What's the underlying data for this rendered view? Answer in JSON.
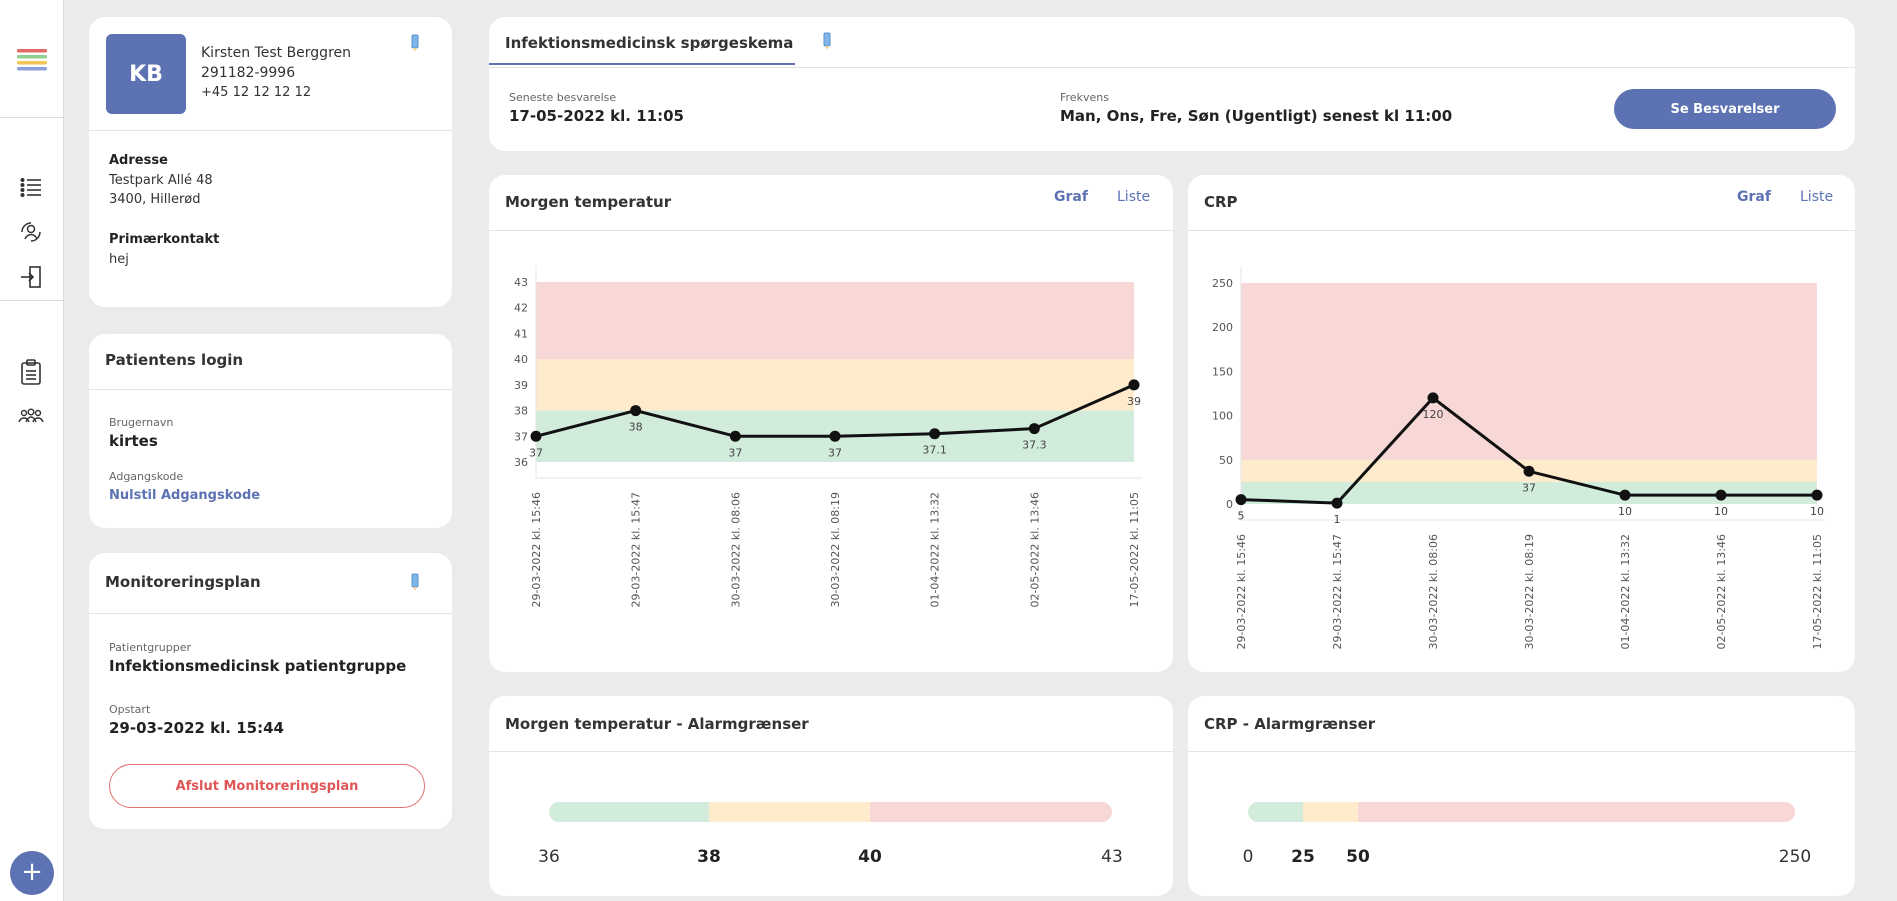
{
  "colors": {
    "accent": "#5c72b3",
    "green": "#d2ecdc",
    "yellow": "#fdebcb",
    "red": "#f8d7d7",
    "danger": "#e05555"
  },
  "nav": {
    "items": [
      "logo",
      "list-icon",
      "patient-cycle-icon",
      "exit-door-icon",
      "clipboard-icon",
      "group-icon"
    ],
    "fab_label": "+"
  },
  "patient": {
    "initials": "KB",
    "name": "Kirsten Test Berggren",
    "cpr": "291182-9996",
    "phone": "+45 12 12 12 12",
    "address_label": "Adresse",
    "address_line1": "Testpark Allé 48",
    "address_line2": "3400, Hillerød",
    "contact_label": "Primærkontakt",
    "contact_value": "hej"
  },
  "login": {
    "title": "Patientens login",
    "username_label": "Brugernavn",
    "username": "kirtes",
    "password_label": "Adgangskode",
    "reset_link": "Nulstil Adgangskode"
  },
  "plan": {
    "title": "Monitoreringsplan",
    "groups_label": "Patientgrupper",
    "groups_value": "Infektionsmedicinsk patientgruppe",
    "start_label": "Opstart",
    "start_value": "29-03-2022 kl. 15:44",
    "end_button": "Afslut Monitoreringsplan"
  },
  "questionnaire": {
    "tab": "Infektionsmedicinsk spørgeskema",
    "latest_label": "Seneste besvarelse",
    "latest_value": "17-05-2022 kl. 11:05",
    "freq_label": "Frekvens",
    "freq_value": "Man, Ons, Fre, Søn (Ugentligt) senest kl 11:00",
    "button": "Se Besvarelser"
  },
  "temp_card": {
    "title": "Morgen temperatur",
    "tab_graph": "Graf",
    "tab_list": "Liste"
  },
  "crp_card": {
    "title": "CRP",
    "tab_graph": "Graf",
    "tab_list": "Liste"
  },
  "temp_alarm": {
    "title": "Morgen temperatur - Alarmgrænser",
    "labels": [
      "36",
      "38",
      "40",
      "43"
    ]
  },
  "crp_alarm": {
    "title": "CRP - Alarmgrænser",
    "labels": [
      "0",
      "25",
      "50",
      "250"
    ]
  },
  "chart_data": [
    {
      "type": "line",
      "x": [
        "29-03-2022 kl. 15:46",
        "29-03-2022 kl. 15:47",
        "30-03-2022 kl. 08:06",
        "30-03-2022 kl. 08:19",
        "01-04-2022 kl. 13:32",
        "02-05-2022 kl. 13:46",
        "17-05-2022 kl. 11:05"
      ],
      "values": [
        37,
        38,
        37,
        37,
        37.1,
        37.3,
        39
      ],
      "data_labels": [
        "37",
        "38",
        "37",
        "37",
        "37.1",
        "37.3",
        "39"
      ],
      "ylim": [
        36,
        43
      ],
      "yticks": [
        36,
        37,
        38,
        39,
        40,
        41,
        42,
        43
      ],
      "bands": [
        {
          "from": 36,
          "to": 38,
          "color": "#d2ecdc"
        },
        {
          "from": 38,
          "to": 40,
          "color": "#fdebcb"
        },
        {
          "from": 40,
          "to": 43,
          "color": "#f8d7d7"
        }
      ]
    },
    {
      "type": "line",
      "x": [
        "29-03-2022 kl. 15:46",
        "29-03-2022 kl. 15:47",
        "30-03-2022 kl. 08:06",
        "30-03-2022 kl. 08:19",
        "01-04-2022 kl. 13:32",
        "02-05-2022 kl. 13:46",
        "17-05-2022 kl. 11:05"
      ],
      "values": [
        5,
        1,
        120,
        37,
        10,
        10,
        10
      ],
      "data_labels": [
        "5",
        "1",
        "120",
        "37",
        "10",
        "10",
        "10"
      ],
      "ylim": [
        0,
        250
      ],
      "yticks": [
        0,
        50,
        100,
        150,
        200,
        250
      ],
      "bands": [
        {
          "from": 0,
          "to": 25,
          "color": "#d2ecdc"
        },
        {
          "from": 25,
          "to": 50,
          "color": "#fdebcb"
        },
        {
          "from": 50,
          "to": 250,
          "color": "#f8d7d7"
        }
      ]
    }
  ]
}
